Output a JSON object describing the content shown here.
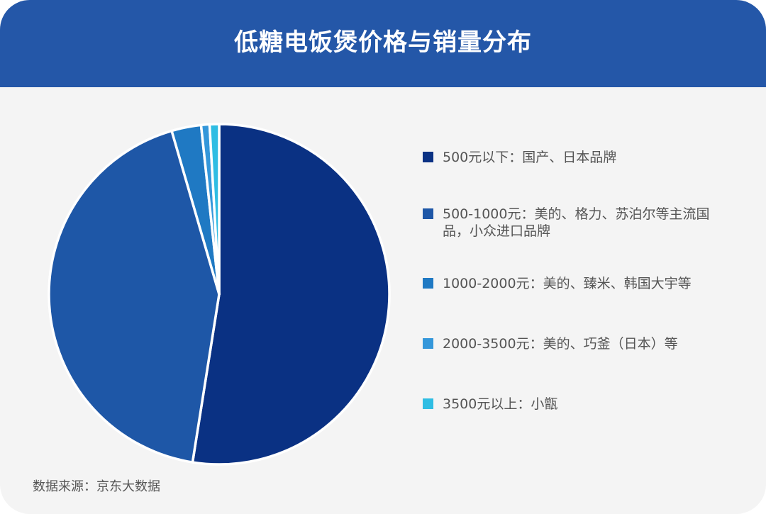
{
  "header": {
    "title": "低糖电饭煲价格与销量分布"
  },
  "chart_data": {
    "type": "pie",
    "title": "低糖电饭煲价格与销量分布",
    "legend_position": "right",
    "slices": [
      {
        "label": "500元以下：国产、日本品牌",
        "value": 52.5,
        "color": "#0a3183"
      },
      {
        "label": "500-1000元：美的、格力、苏泊尔等主流国品，小众进口品牌",
        "value": 43.0,
        "color": "#1e57a7"
      },
      {
        "label": "1000-2000元：美的、臻米、韩国大宇等",
        "value": 2.8,
        "color": "#1f79c3"
      },
      {
        "label": "2000-3500元：美的、巧釜（日本）等",
        "value": 0.8,
        "color": "#3497da"
      },
      {
        "label": "3500元以上：小甑",
        "value": 0.9,
        "color": "#2fbde3"
      }
    ]
  },
  "footer": {
    "source": "数据来源：京东大数据"
  }
}
